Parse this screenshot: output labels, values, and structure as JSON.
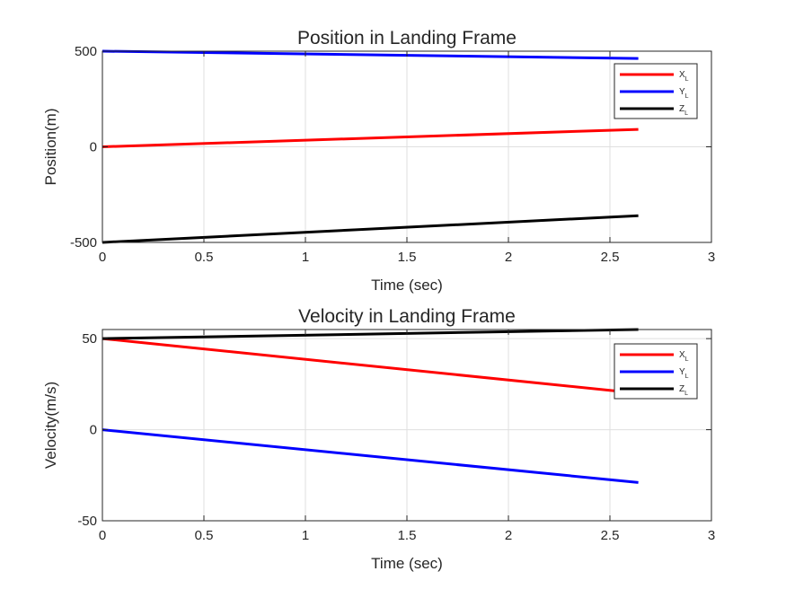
{
  "chart_data": [
    {
      "type": "line",
      "title": "Position in Landing Frame",
      "xlabel": "Time (sec)",
      "ylabel": "Position(m)",
      "xlim": [
        0,
        3
      ],
      "ylim": [
        -500,
        500
      ],
      "xticks": [
        0,
        0.5,
        1,
        1.5,
        2,
        2.5,
        3
      ],
      "xtick_labels": [
        "0",
        "0.5",
        "1",
        "1.5",
        "2",
        "2.5",
        "3"
      ],
      "yticks": [
        -500,
        0,
        500
      ],
      "ytick_labels": [
        "-500",
        "0",
        "500"
      ],
      "grid": true,
      "legend_position": "top-right",
      "series": [
        {
          "name": "X",
          "subscript": "L",
          "color": "#ff0000",
          "x": [
            0,
            2.64
          ],
          "y": [
            0,
            91
          ]
        },
        {
          "name": "Y",
          "subscript": "L",
          "color": "#0000ff",
          "x": [
            0,
            2.64
          ],
          "y": [
            500,
            462
          ]
        },
        {
          "name": "Z",
          "subscript": "L",
          "color": "#000000",
          "x": [
            0,
            2.64
          ],
          "y": [
            -500,
            -360
          ]
        }
      ]
    },
    {
      "type": "line",
      "title": "Velocity in Landing Frame",
      "xlabel": "Time (sec)",
      "ylabel": "Velocity(m/s)",
      "xlim": [
        0,
        3
      ],
      "ylim": [
        -50,
        55
      ],
      "xticks": [
        0,
        0.5,
        1,
        1.5,
        2,
        2.5,
        3
      ],
      "xtick_labels": [
        "0",
        "0.5",
        "1",
        "1.5",
        "2",
        "2.5",
        "3"
      ],
      "yticks": [
        -50,
        0,
        50
      ],
      "ytick_labels": [
        "-50",
        "0",
        "50"
      ],
      "grid": true,
      "legend_position": "top-right",
      "series": [
        {
          "name": "X",
          "subscript": "L",
          "color": "#ff0000",
          "x": [
            0,
            2.64
          ],
          "y": [
            50,
            20
          ]
        },
        {
          "name": "Y",
          "subscript": "L",
          "color": "#0000ff",
          "x": [
            0,
            2.64
          ],
          "y": [
            0,
            -29
          ]
        },
        {
          "name": "Z",
          "subscript": "L",
          "color": "#000000",
          "x": [
            0,
            2.64
          ],
          "y": [
            50,
            55
          ]
        }
      ]
    }
  ]
}
